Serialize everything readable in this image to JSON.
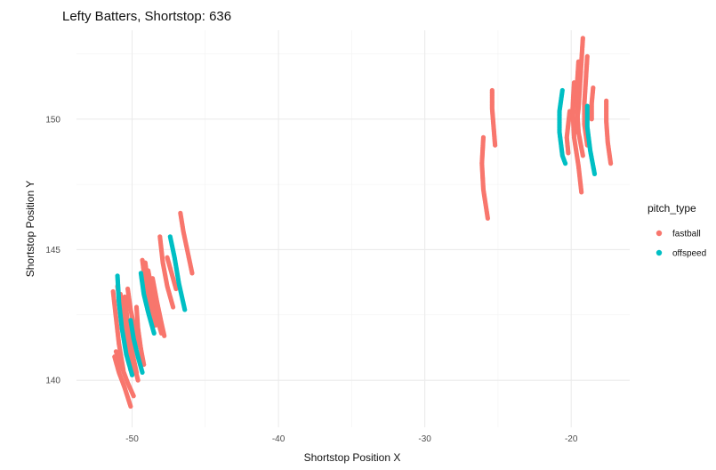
{
  "chart_data": {
    "type": "scatter",
    "title": "Lefty Batters, Shortstop: 636",
    "xlabel": "Shortstop Position X",
    "ylabel": "Shortstop Position Y",
    "xlim": [
      -53.8,
      -16.0
    ],
    "ylim": [
      138.2,
      153.4
    ],
    "x_ticks": [
      -50,
      -40,
      -30,
      -20
    ],
    "x_tick_labels": [
      "-50",
      "-40",
      "-30",
      "-20"
    ],
    "y_ticks": [
      140,
      145,
      150
    ],
    "y_tick_labels": [
      "140",
      "145",
      "150"
    ],
    "grid": true,
    "legend": {
      "title": "pitch_type",
      "placement": "right"
    },
    "series": [
      {
        "name": "fastball",
        "color": "#F8766D",
        "tracks": [
          [
            [
              -51.3,
              143.4
            ],
            [
              -51.1,
              142.4
            ],
            [
              -50.9,
              141.4
            ],
            [
              -50.6,
              140.4
            ]
          ],
          [
            [
              -51.1,
              141.1
            ],
            [
              -50.7,
              140.5
            ],
            [
              -50.3,
              139.9
            ],
            [
              -49.9,
              139.4
            ]
          ],
          [
            [
              -51.2,
              140.9
            ],
            [
              -50.9,
              140.3
            ],
            [
              -50.5,
              139.7
            ],
            [
              -50.1,
              139.0
            ]
          ],
          [
            [
              -50.8,
              143.3
            ],
            [
              -50.6,
              142.5
            ],
            [
              -50.3,
              141.6
            ],
            [
              -49.9,
              140.7
            ],
            [
              -49.6,
              140.0
            ]
          ],
          [
            [
              -50.6,
              142.8
            ],
            [
              -50.3,
              142.0
            ],
            [
              -50.0,
              141.1
            ],
            [
              -49.7,
              140.3
            ]
          ],
          [
            [
              -50.5,
              143.2
            ],
            [
              -50.3,
              142.2
            ],
            [
              -50.1,
              141.2
            ],
            [
              -49.8,
              140.3
            ]
          ],
          [
            [
              -50.3,
              143.5
            ],
            [
              -50.1,
              142.7
            ],
            [
              -49.8,
              141.9
            ],
            [
              -49.4,
              141.2
            ]
          ],
          [
            [
              -51.0,
              143.6
            ],
            [
              -50.7,
              142.5
            ],
            [
              -50.4,
              141.4
            ],
            [
              -50.1,
              140.4
            ]
          ],
          [
            [
              -49.7,
              142.8
            ],
            [
              -49.6,
              142.0
            ],
            [
              -49.4,
              141.2
            ],
            [
              -49.2,
              140.6
            ]
          ],
          [
            [
              -49.3,
              144.6
            ],
            [
              -49.1,
              143.7
            ],
            [
              -48.8,
              142.8
            ],
            [
              -48.5,
              142.1
            ]
          ],
          [
            [
              -48.9,
              144.2
            ],
            [
              -48.6,
              143.3
            ],
            [
              -48.3,
              142.4
            ],
            [
              -48.0,
              141.8
            ]
          ],
          [
            [
              -48.1,
              145.5
            ],
            [
              -47.9,
              144.5
            ],
            [
              -47.6,
              143.6
            ],
            [
              -47.2,
              142.8
            ]
          ],
          [
            [
              -48.6,
              143.9
            ],
            [
              -48.3,
              143.0
            ],
            [
              -48.0,
              142.2
            ],
            [
              -47.8,
              141.7
            ]
          ],
          [
            [
              -49.1,
              144.5
            ],
            [
              -48.9,
              143.6
            ],
            [
              -48.6,
              142.7
            ],
            [
              -48.4,
              142.1
            ]
          ],
          [
            [
              -47.6,
              144.7
            ],
            [
              -47.3,
              144.1
            ],
            [
              -47.0,
              143.5
            ]
          ],
          [
            [
              -46.7,
              146.4
            ],
            [
              -46.5,
              145.7
            ],
            [
              -46.2,
              144.9
            ],
            [
              -45.9,
              144.1
            ]
          ],
          [
            [
              -26.0,
              149.3
            ],
            [
              -26.1,
              148.3
            ],
            [
              -26.0,
              147.3
            ],
            [
              -25.7,
              146.2
            ]
          ],
          [
            [
              -25.4,
              151.1
            ],
            [
              -25.4,
              150.4
            ],
            [
              -25.3,
              149.7
            ],
            [
              -25.2,
              149.0
            ]
          ],
          [
            [
              -19.2,
              153.1
            ],
            [
              -19.3,
              152.2
            ],
            [
              -19.4,
              151.3
            ],
            [
              -19.5,
              150.4
            ],
            [
              -19.7,
              149.5
            ]
          ],
          [
            [
              -19.5,
              152.2
            ],
            [
              -19.6,
              151.3
            ],
            [
              -19.6,
              150.4
            ],
            [
              -19.5,
              149.5
            ],
            [
              -19.2,
              148.6
            ]
          ],
          [
            [
              -19.8,
              151.4
            ],
            [
              -19.9,
              150.4
            ],
            [
              -19.8,
              149.3
            ],
            [
              -19.5,
              148.2
            ],
            [
              -19.3,
              147.2
            ]
          ],
          [
            [
              -18.9,
              152.4
            ],
            [
              -19.0,
              151.5
            ],
            [
              -19.1,
              150.6
            ],
            [
              -19.1,
              149.8
            ],
            [
              -18.9,
              149.0
            ]
          ],
          [
            [
              -17.6,
              150.7
            ],
            [
              -17.6,
              149.9
            ],
            [
              -17.5,
              149.1
            ],
            [
              -17.3,
              148.3
            ]
          ],
          [
            [
              -20.1,
              150.3
            ],
            [
              -20.2,
              149.8
            ],
            [
              -20.3,
              149.3
            ],
            [
              -20.2,
              148.7
            ]
          ],
          [
            [
              -18.5,
              151.2
            ],
            [
              -18.6,
              150.6
            ],
            [
              -18.6,
              150.0
            ]
          ]
        ]
      },
      {
        "name": "offspeed",
        "color": "#00BFC4",
        "tracks": [
          [
            [
              -51.0,
              144.0
            ],
            [
              -50.9,
              143.0
            ],
            [
              -50.7,
              142.0
            ],
            [
              -50.4,
              141.0
            ],
            [
              -50.0,
              140.2
            ]
          ],
          [
            [
              -50.1,
              142.3
            ],
            [
              -49.9,
              141.6
            ],
            [
              -49.6,
              140.9
            ],
            [
              -49.3,
              140.3
            ]
          ],
          [
            [
              -49.4,
              144.1
            ],
            [
              -49.2,
              143.3
            ],
            [
              -48.9,
              142.6
            ],
            [
              -48.5,
              141.8
            ]
          ],
          [
            [
              -47.4,
              145.5
            ],
            [
              -47.1,
              144.7
            ],
            [
              -46.8,
              143.7
            ],
            [
              -46.4,
              142.7
            ]
          ],
          [
            [
              -20.6,
              151.1
            ],
            [
              -20.8,
              150.3
            ],
            [
              -20.8,
              149.5
            ],
            [
              -20.6,
              148.6
            ],
            [
              -20.4,
              148.3
            ]
          ],
          [
            [
              -18.9,
              150.5
            ],
            [
              -18.9,
              149.7
            ],
            [
              -18.7,
              148.8
            ],
            [
              -18.4,
              147.9
            ]
          ]
        ]
      }
    ]
  }
}
